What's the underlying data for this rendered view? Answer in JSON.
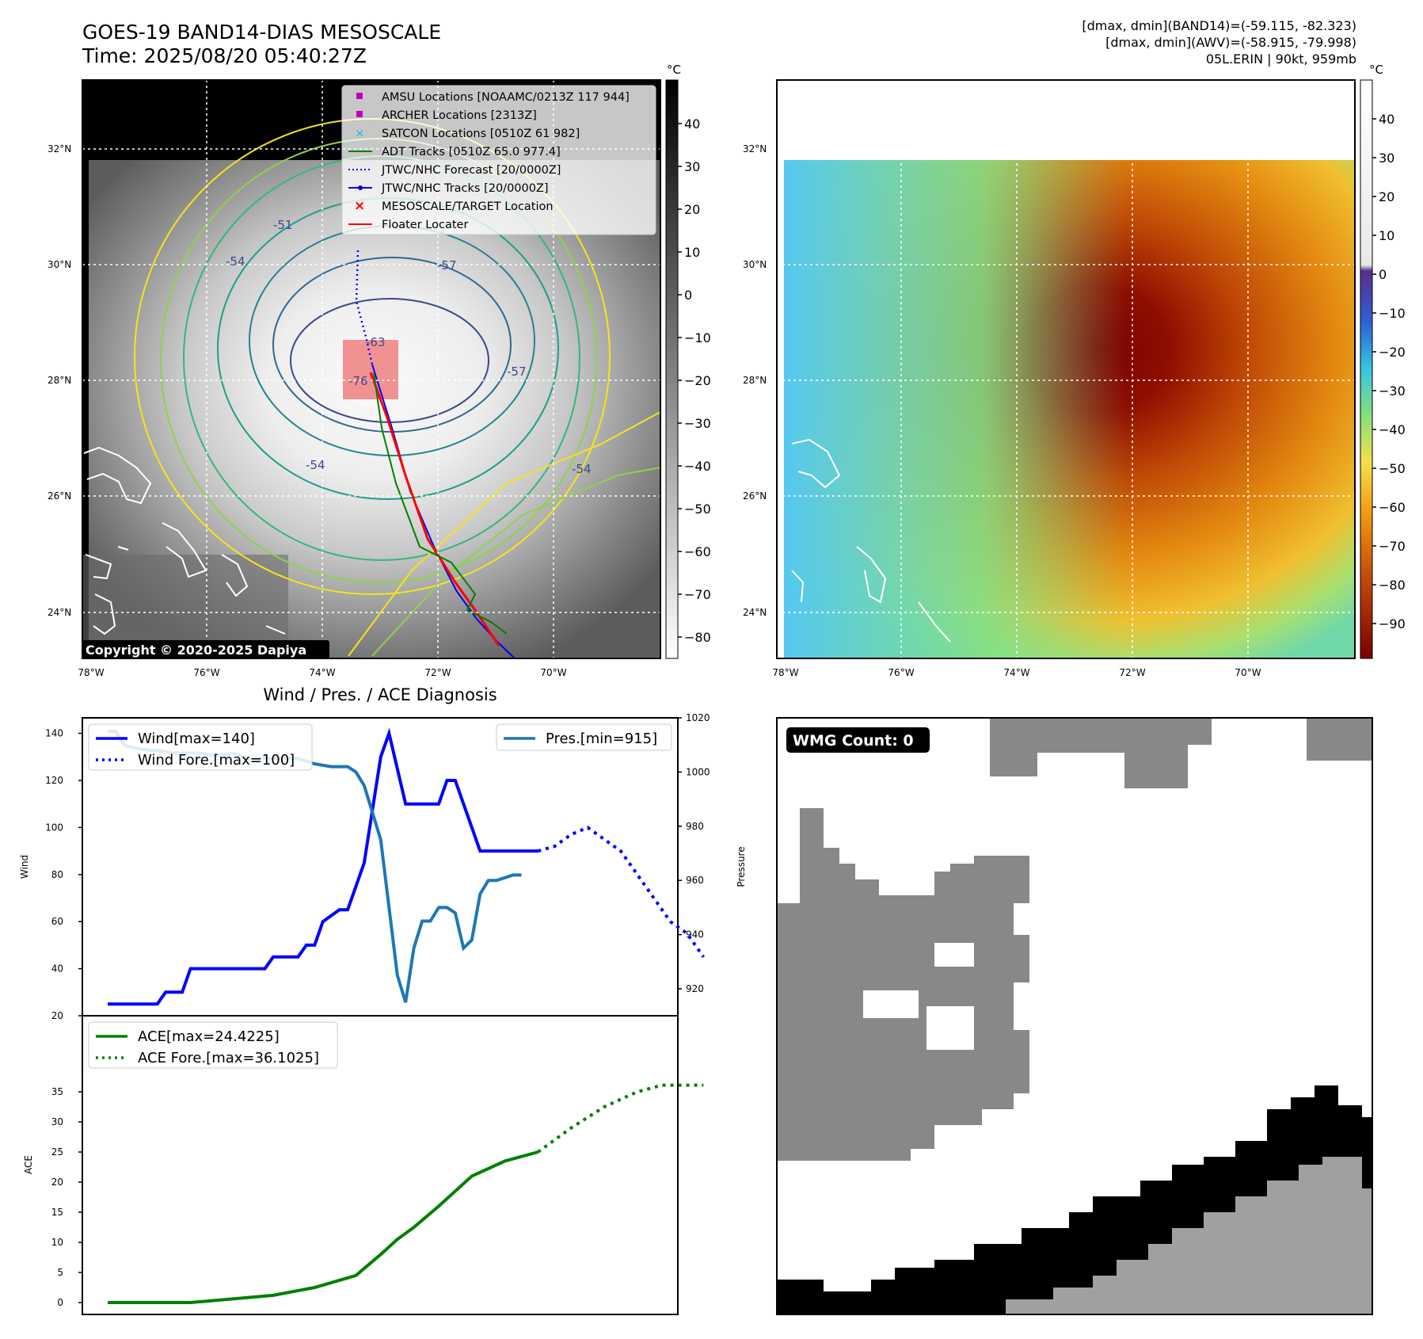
{
  "header": {
    "title": "GOES-19 BAND14-DIAS MESOSCALE",
    "time": "Time: 2025/08/20 05:40:27Z",
    "info_line1": "[dmax, dmin](BAND14)=(-59.115, -82.323)",
    "info_line2": "[dmax, dmin](AWV)=(-58.915, -79.998)",
    "info_line3": "05L.ERIN | 90kt, 959mb"
  },
  "map": {
    "lon_ticks": [
      "78°W",
      "76°W",
      "74°W",
      "72°W",
      "70°W"
    ],
    "lat_ticks": [
      "32°N",
      "30°N",
      "28°N",
      "26°N",
      "24°N"
    ],
    "copyright": "Copyright © 2020-2025 Dapiya",
    "contour_labels": [
      "-51",
      "-54",
      "-57",
      "-76",
      "-54",
      "-54",
      "-63",
      "-57"
    ],
    "legend": [
      {
        "label": "AMSU Locations [NOAAMC/0213Z 117 944]",
        "color": "#bf00bf",
        "marker": "square"
      },
      {
        "label": "ARCHER Locations [2313Z]",
        "color": "#bf00bf",
        "marker": "square"
      },
      {
        "label": "SATCON Locations [0510Z 61 982]",
        "color": "#17becf",
        "marker": "x"
      },
      {
        "label": "ADT Tracks [0510Z 65.0 977.4]",
        "color": "#008000",
        "marker": "line"
      },
      {
        "label": "JTWC/NHC Forecast [20/0000Z]",
        "color": "#0000ff",
        "marker": "dotted"
      },
      {
        "label": "JTWC/NHC Tracks [20/0000Z]",
        "color": "#0000ff",
        "marker": "dotline"
      },
      {
        "label": "MESOSCALE/TARGET Location",
        "color": "#ff0000",
        "marker": "x"
      },
      {
        "label": "Floater Locater",
        "color": "#ff0000",
        "marker": "line"
      }
    ]
  },
  "colorbar_gray": {
    "unit": "°C",
    "ticks": [
      "40",
      "30",
      "20",
      "10",
      "0",
      "−10",
      "−20",
      "−30",
      "−40",
      "−50",
      "−60",
      "−70",
      "−80"
    ]
  },
  "colorbar_color": {
    "unit": "°C",
    "ticks": [
      "40",
      "30",
      "20",
      "10",
      "0",
      "−10",
      "−20",
      "−30",
      "−40",
      "−50",
      "−60",
      "−70",
      "−80",
      "−90"
    ]
  },
  "wmg": {
    "label": "WMG Count: 0"
  },
  "chart_data": [
    {
      "type": "line",
      "title": "Wind / Pres. / ACE Diagnosis",
      "ylabel": "Wind",
      "ylabel_right": "Pressure",
      "ylim": [
        20,
        145
      ],
      "ylim_right": [
        910,
        1020
      ],
      "yticks": [
        "140",
        "120",
        "100",
        "80",
        "60",
        "40",
        "20"
      ],
      "yticks_right": [
        "1020",
        "1000",
        "980",
        "960",
        "940",
        "920"
      ],
      "legend_left": [
        "Wind[max=140]",
        "Wind Fore.[max=100]"
      ],
      "legend_right": [
        "Pres.[min=915]"
      ],
      "series": [
        {
          "name": "Wind[max=140]",
          "color": "#0000ff",
          "style": "solid",
          "x": [
            0,
            6,
            7,
            9,
            10,
            12,
            13,
            19,
            20,
            23,
            24,
            25,
            26,
            28,
            29,
            30,
            31,
            33,
            34,
            36,
            37,
            38,
            40,
            41,
            42,
            45,
            46,
            50,
            52
          ],
          "y": [
            25,
            25,
            30,
            30,
            40,
            40,
            40,
            40,
            45,
            45,
            50,
            50,
            60,
            65,
            65,
            75,
            85,
            130,
            140,
            110,
            110,
            110,
            110,
            120,
            120,
            90,
            90,
            90,
            90
          ]
        },
        {
          "name": "Wind Fore.[max=100]",
          "color": "#0000ff",
          "style": "dotted",
          "x": [
            52,
            54,
            56,
            58,
            60,
            62,
            64,
            66,
            68,
            70,
            72
          ],
          "y": [
            90,
            92,
            97,
            100,
            95,
            90,
            80,
            70,
            60,
            55,
            45
          ]
        },
        {
          "name": "Pres.[min=915]",
          "color": "#1f77b4",
          "style": "solid",
          "axis": "right",
          "x": [
            0,
            1,
            2,
            3,
            5,
            6,
            8,
            10,
            11,
            13,
            15,
            17,
            19,
            21,
            23,
            25,
            27,
            29,
            30,
            31,
            32,
            33,
            34,
            35,
            36,
            37,
            38,
            39,
            40,
            41,
            42,
            43,
            44,
            45,
            46,
            47,
            48,
            49,
            50
          ],
          "y": [
            1015,
            1015,
            1010,
            1009,
            1008,
            1008,
            1007,
            1007,
            1007,
            1006,
            1007,
            1005,
            1005,
            1005,
            1005,
            1003,
            1002,
            1002,
            1000,
            995,
            985,
            975,
            950,
            925,
            915,
            935,
            945,
            945,
            950,
            950,
            948,
            935,
            938,
            955,
            960,
            960,
            961,
            962,
            962
          ]
        }
      ]
    },
    {
      "type": "line",
      "ylabel": "ACE",
      "ylim": [
        -1,
        37
      ],
      "yticks": [
        "35",
        "30",
        "25",
        "20",
        "15",
        "10",
        "5",
        "0"
      ],
      "series": [
        {
          "name": "ACE[max=24.4225]",
          "color": "#008000",
          "style": "solid",
          "x": [
            0,
            10,
            20,
            25,
            30,
            33,
            35,
            37,
            40,
            44,
            48,
            52
          ],
          "y": [
            0,
            0,
            1.2,
            2.5,
            4.5,
            8,
            10.5,
            12.5,
            16,
            21,
            23.5,
            25
          ]
        },
        {
          "name": "ACE Fore.[max=36.1025]",
          "color": "#008000",
          "style": "dotted",
          "x": [
            52,
            56,
            60,
            64,
            67,
            70,
            72
          ],
          "y": [
            25,
            29,
            32.5,
            35,
            36.1,
            36.1,
            36.1
          ]
        }
      ]
    }
  ]
}
